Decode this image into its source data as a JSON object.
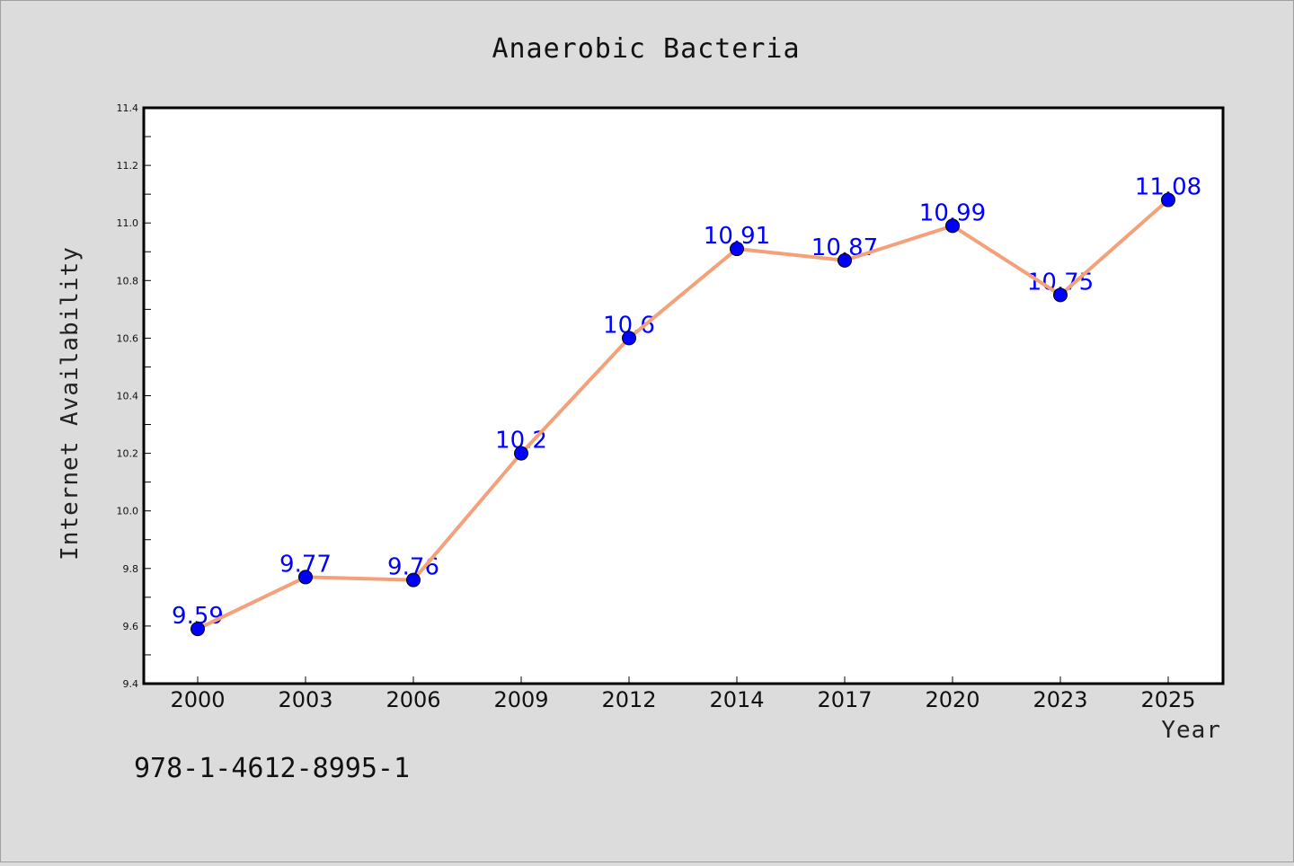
{
  "chart_data": {
    "type": "line",
    "title": "Anaerobic Bacteria",
    "xlabel": "Year",
    "ylabel": "Internet Availability",
    "categories": [
      "2000",
      "2003",
      "2006",
      "2009",
      "2012",
      "2014",
      "2017",
      "2020",
      "2023",
      "2025"
    ],
    "series": [
      {
        "values": [
          9.59,
          9.77,
          9.76,
          10.2,
          10.6,
          10.91,
          10.87,
          10.99,
          10.75,
          11.08
        ],
        "data_labels": [
          "9.59",
          "9.77",
          "9.76",
          "10.2",
          "10.6",
          "10.91",
          "10.87",
          "10.99",
          "10.75",
          "11.08"
        ]
      }
    ],
    "ylim": [
      9.4,
      11.4
    ],
    "yticks": [
      "9.4",
      "9.6",
      "9.8",
      "10.0",
      "10.2",
      "10.4",
      "10.6",
      "10.8",
      "11.0",
      "11.2",
      "11.4"
    ],
    "grid": false,
    "line_color": "#f4a07a",
    "marker_color": "#0000ff",
    "label_color": "#0000ff"
  },
  "footer": {
    "isbn": "978-1-4612-8995-1"
  }
}
